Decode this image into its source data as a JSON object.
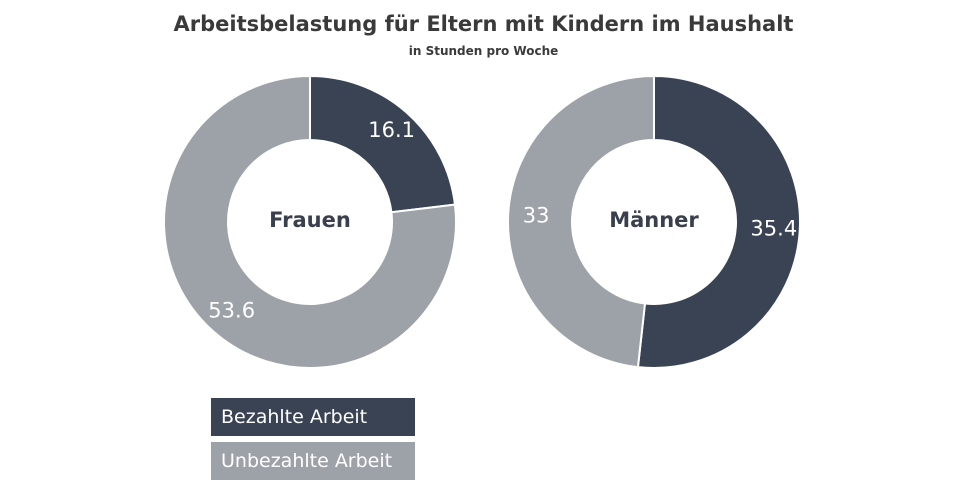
{
  "title": "Arbeitsbelastung für Eltern mit Kindern im Haushalt",
  "subtitle": "in Stunden pro Woche",
  "colors": {
    "bezahlt": "#3a4354",
    "unbezahlt": "#9da1a8"
  },
  "legend": [
    "Bezahlte Arbeit",
    "Unbezahlte  Arbeit"
  ],
  "chart_data": [
    {
      "type": "pie",
      "center_label": "Frauen",
      "categories": [
        "Bezahlte Arbeit",
        "Unbezahlte  Arbeit"
      ],
      "values": [
        16.1,
        53.6
      ],
      "value_labels": [
        "16.1",
        "53.6"
      ]
    },
    {
      "type": "pie",
      "center_label": "Männer",
      "categories": [
        "Bezahlte Arbeit",
        "Unbezahlte  Arbeit"
      ],
      "values": [
        35.4,
        33
      ],
      "value_labels": [
        "35.4",
        "33"
      ]
    }
  ]
}
